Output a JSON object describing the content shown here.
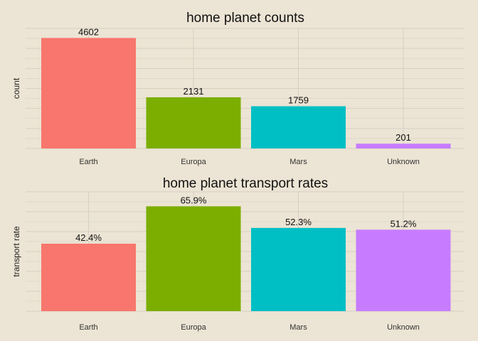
{
  "chart_data": [
    {
      "type": "bar",
      "title": "home planet counts",
      "xlabel": "",
      "ylabel": "count",
      "categories": [
        "Earth",
        "Europa",
        "Mars",
        "Unknown"
      ],
      "values": [
        4602,
        2131,
        1759,
        201
      ],
      "data_labels": [
        "4602",
        "2131",
        "1759",
        "201"
      ],
      "colors": [
        "#f8766d",
        "#7cae00",
        "#00bfc4",
        "#c77cff"
      ],
      "ylim": [
        0,
        5000
      ],
      "grid": true,
      "legend": "none"
    },
    {
      "type": "bar",
      "title": "home planet transport rates",
      "xlabel": "",
      "ylabel": "transport rate",
      "categories": [
        "Earth",
        "Europa",
        "Mars",
        "Unknown"
      ],
      "values": [
        0.424,
        0.659,
        0.523,
        0.512
      ],
      "data_labels": [
        "42.4%",
        "65.9%",
        "52.3%",
        "51.2%"
      ],
      "colors": [
        "#f8766d",
        "#7cae00",
        "#00bfc4",
        "#c77cff"
      ],
      "ylim": [
        0,
        0.75
      ],
      "grid": true,
      "legend": "none"
    }
  ]
}
